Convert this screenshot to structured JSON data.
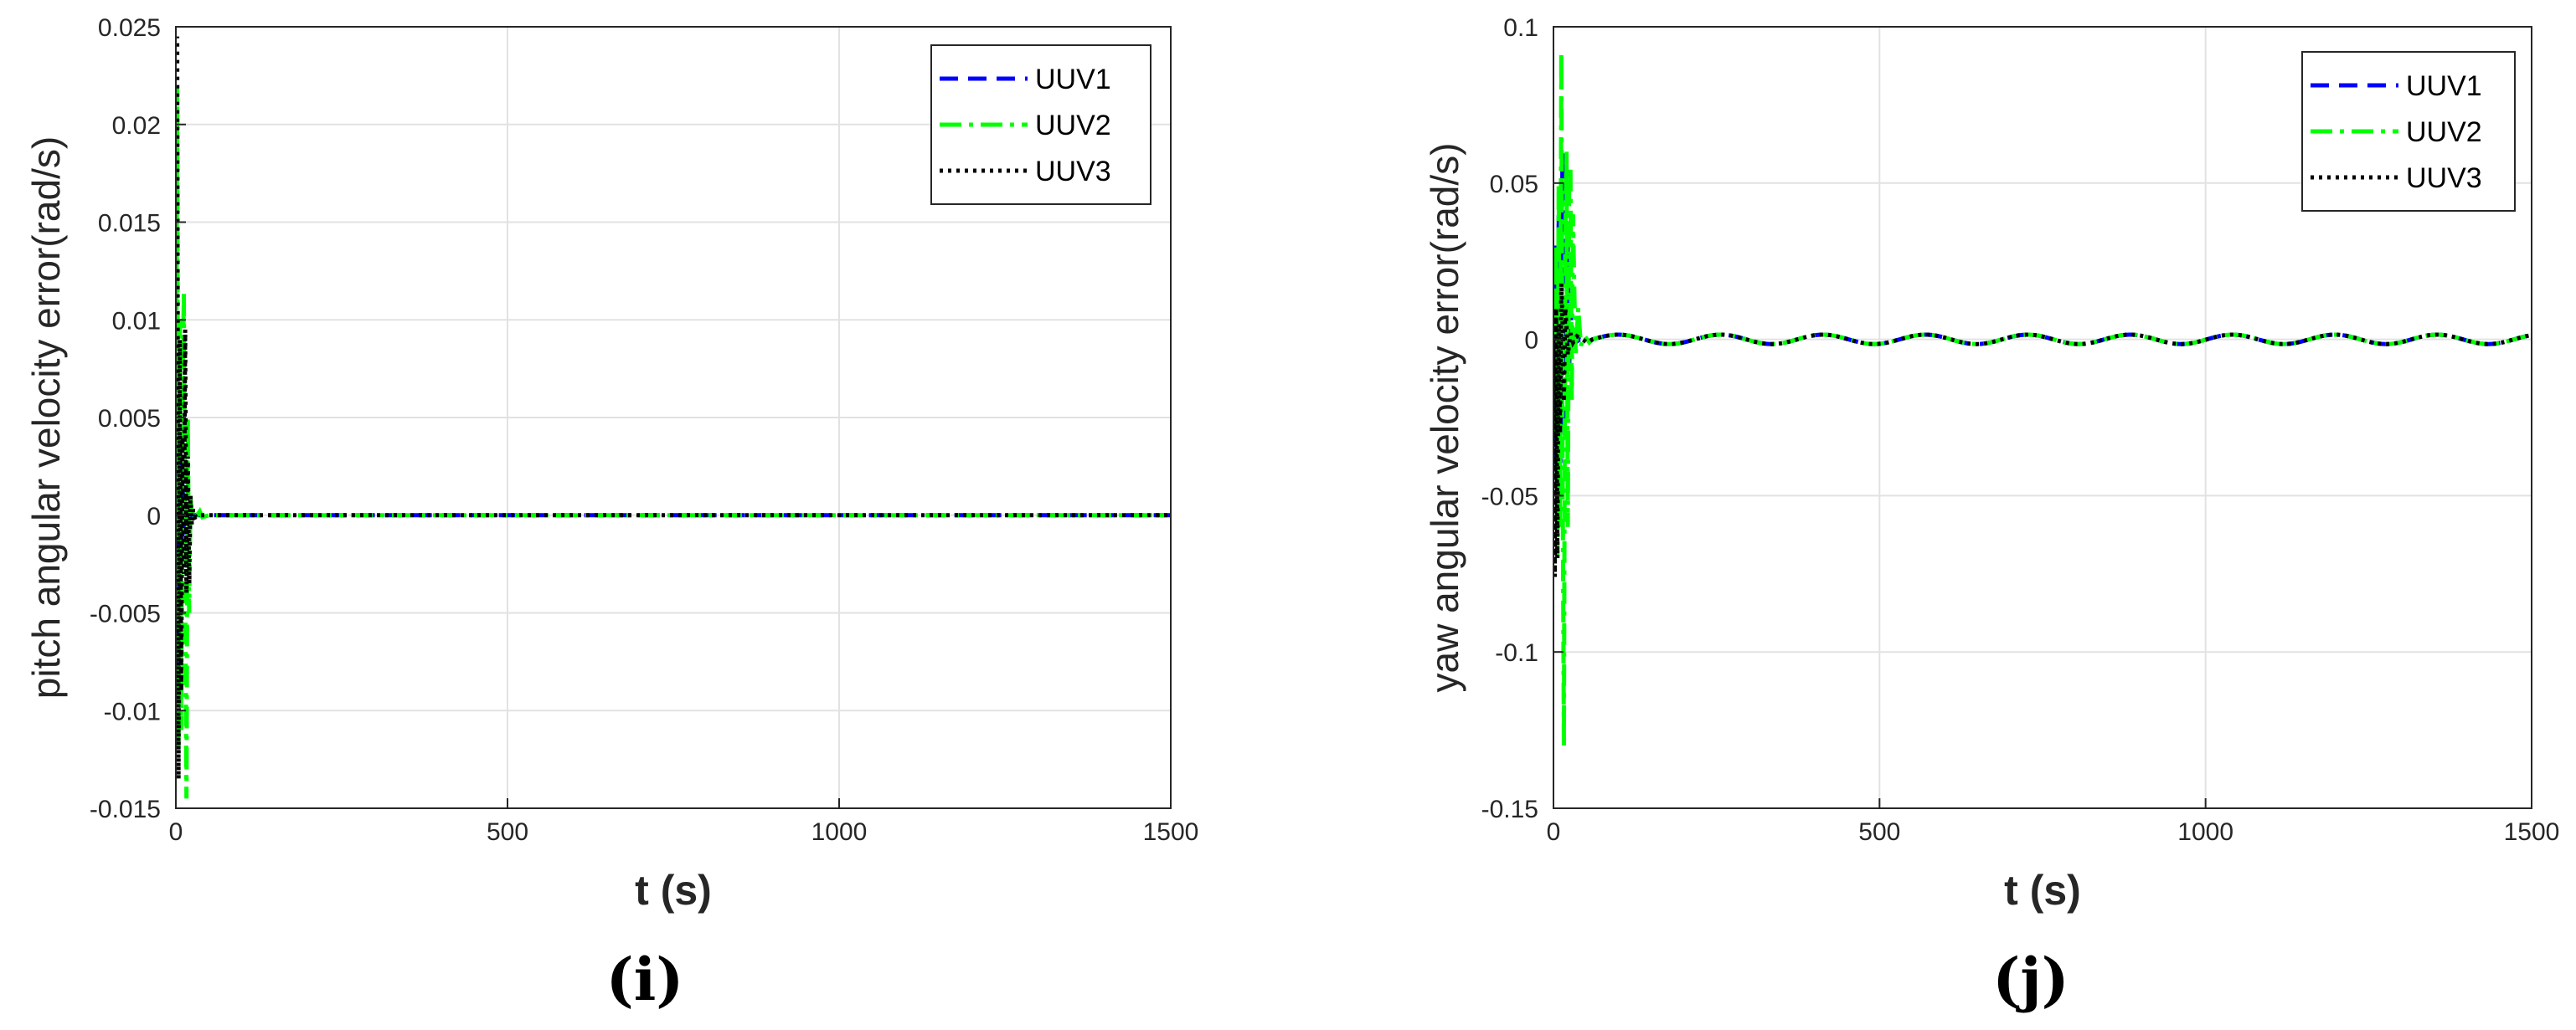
{
  "chart_data": [
    {
      "type": "line",
      "panel_label": "(i)",
      "xlabel": "t (s)",
      "ylabel": "pitch angular velocity error(rad/s)",
      "xlim": [
        0,
        1500
      ],
      "ylim": [
        -0.015,
        0.025
      ],
      "xticks": [
        0,
        500,
        1000,
        1500
      ],
      "yticks": [
        -0.015,
        -0.01,
        -0.005,
        0,
        0.005,
        0.01,
        0.015,
        0.02,
        0.025
      ],
      "ytick_labels": [
        "-0.015",
        "-0.01",
        "-0.005",
        "0",
        "0.005",
        "0.01",
        "0.015",
        "0.02",
        "0.025"
      ],
      "grid": true,
      "legend_position": "top-right",
      "series": [
        {
          "name": "UUV1",
          "color": "#0000ff",
          "style": "dashed",
          "x": [
            0,
            2,
            4,
            6,
            8,
            10,
            12,
            14,
            16,
            18,
            20,
            24,
            30,
            40,
            60,
            1500
          ],
          "y": [
            0,
            0.006,
            -0.009,
            0.004,
            -0.003,
            0.002,
            -0.001,
            0.0005,
            0,
            0,
            0,
            0,
            0,
            0,
            0,
            0
          ]
        },
        {
          "name": "UUV2",
          "color": "#00ff00",
          "style": "dashdot",
          "x": [
            0,
            2,
            4,
            6,
            8,
            10,
            12,
            14,
            16,
            18,
            20,
            22,
            24,
            26,
            28,
            32,
            36,
            40,
            50,
            60,
            80,
            1500
          ],
          "y": [
            0,
            0.022,
            -0.012,
            0.01,
            -0.011,
            0.005,
            0.0115,
            -0.004,
            -0.0145,
            0.005,
            -0.005,
            0.001,
            0,
            0.0003,
            -0.0001,
            0,
            0.0002,
            -0.0001,
            0,
            0,
            0,
            0
          ]
        },
        {
          "name": "UUV3",
          "color": "#000000",
          "style": "dotted",
          "x": [
            0,
            2,
            4,
            6,
            8,
            10,
            12,
            14,
            16,
            18,
            20,
            22,
            24,
            26,
            30,
            36,
            40,
            50,
            60,
            1500
          ],
          "y": [
            0,
            0.0245,
            -0.0135,
            0.009,
            -0.009,
            0.004,
            -0.003,
            0.0095,
            -0.004,
            0.003,
            -0.0035,
            0.001,
            -0.0005,
            0.0003,
            -0.0001,
            0,
            0,
            0,
            0,
            0
          ]
        }
      ]
    },
    {
      "type": "line",
      "panel_label": "(j)",
      "xlabel": "t (s)",
      "ylabel": "yaw angular velocity error(rad/s)",
      "xlim": [
        0,
        1500
      ],
      "ylim": [
        -0.15,
        0.1
      ],
      "xticks": [
        0,
        500,
        1000,
        1500
      ],
      "yticks": [
        -0.15,
        -0.1,
        -0.05,
        0,
        0.05,
        0.1
      ],
      "ytick_labels": [
        "-0.15",
        "-0.1",
        "-0.05",
        "0",
        "0.05",
        "0.1"
      ],
      "grid": true,
      "legend_position": "top-right",
      "oscillation": {
        "amplitude": 0.0015,
        "period": 157
      },
      "series": [
        {
          "name": "UUV1",
          "color": "#0000ff",
          "style": "dashed",
          "x": [
            0,
            2,
            4,
            6,
            8,
            10,
            12,
            14,
            16,
            18,
            20,
            22,
            24,
            26,
            30,
            34,
            40,
            50,
            60
          ],
          "y": [
            0,
            -0.04,
            0.03,
            -0.06,
            0.04,
            -0.05,
            0.02,
            0.06,
            -0.03,
            0.02,
            0.01,
            0.03,
            -0.01,
            0.01,
            0.002,
            -0.001,
            0,
            -0.001,
            0
          ]
        },
        {
          "name": "UUV2",
          "color": "#00ff00",
          "style": "dashdot",
          "x": [
            0,
            2,
            4,
            6,
            8,
            10,
            12,
            14,
            16,
            18,
            20,
            22,
            24,
            26,
            28,
            30,
            32,
            34,
            38,
            42,
            48,
            55,
            60
          ],
          "y": [
            0,
            -0.03,
            0.03,
            -0.07,
            0.05,
            -0.06,
            0.092,
            -0.04,
            -0.13,
            0.03,
            0.06,
            -0.06,
            0.05,
            0.055,
            -0.02,
            0.04,
            0.015,
            -0.005,
            0.01,
            -0.002,
            0.001,
            -0.001,
            0
          ]
        },
        {
          "name": "UUV3",
          "color": "#000000",
          "style": "dotted",
          "x": [
            0,
            2,
            4,
            6,
            8,
            10,
            12,
            14,
            16,
            18,
            20,
            22,
            26,
            30,
            36,
            44,
            52,
            60
          ],
          "y": [
            0,
            -0.076,
            0.01,
            -0.07,
            0.005,
            -0.03,
            0.018,
            0.005,
            -0.02,
            0.01,
            0.004,
            -0.005,
            0.002,
            -0.001,
            0.001,
            0,
            -0.001,
            0
          ]
        }
      ]
    }
  ]
}
